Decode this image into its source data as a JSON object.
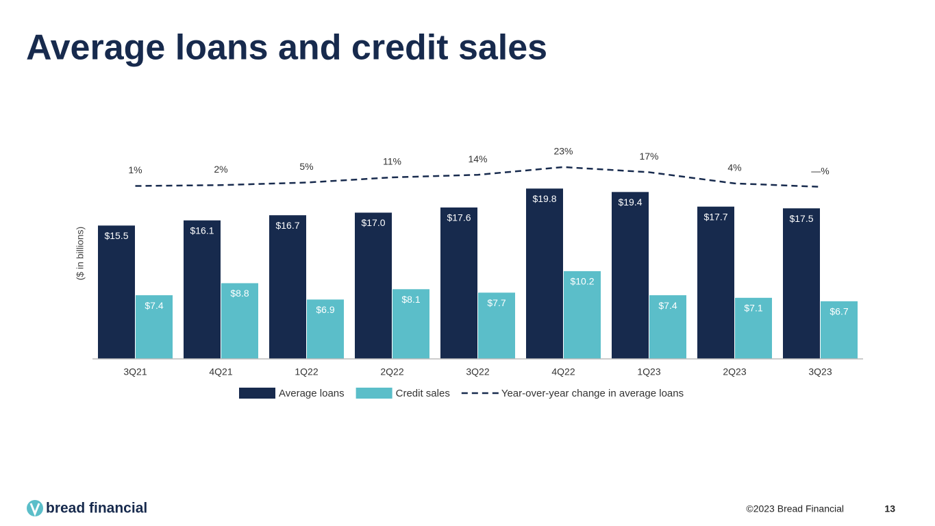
{
  "chart_data": {
    "type": "bar",
    "title": "Average loans and credit sales",
    "y_label": "($ in billions)",
    "categories": [
      "3Q21",
      "4Q21",
      "1Q22",
      "2Q22",
      "3Q22",
      "4Q22",
      "1Q23",
      "2Q23",
      "3Q23"
    ],
    "series": [
      {
        "name": "Average loans",
        "color": "#172a4d",
        "values": [
          15.5,
          16.1,
          16.7,
          17.0,
          17.6,
          19.8,
          19.4,
          17.7,
          17.5
        ],
        "value_labels": [
          "$15.5",
          "$16.1",
          "$16.7",
          "$17.0",
          "$17.6",
          "$19.8",
          "$19.4",
          "$17.7",
          "$17.5"
        ]
      },
      {
        "name": "Credit sales",
        "color": "#5bbec9",
        "values": [
          7.4,
          8.8,
          6.9,
          8.1,
          7.7,
          10.2,
          7.4,
          7.1,
          6.7
        ],
        "value_labels": [
          "$7.4",
          "$8.8",
          "$6.9",
          "$8.1",
          "$7.7",
          "$10.2",
          "$7.4",
          "$7.1",
          "$6.7"
        ]
      },
      {
        "name": "Year-over-year change in average loans",
        "type": "line",
        "style": "dashed",
        "axis": "y2",
        "color": "#172a4d",
        "values": [
          1,
          2,
          5,
          11,
          14,
          23,
          17,
          4,
          0
        ],
        "value_labels": [
          "1%",
          "2%",
          "5%",
          "11%",
          "14%",
          "23%",
          "17%",
          "4%",
          "—%"
        ]
      }
    ],
    "ylim": [
      0,
      25
    ],
    "y2lim": [
      -200,
      50
    ],
    "grid": false,
    "legend": "bottom"
  },
  "footer": {
    "logo": "bread financial",
    "copyright": "©2023 Bread Financial",
    "page_number": "13"
  }
}
